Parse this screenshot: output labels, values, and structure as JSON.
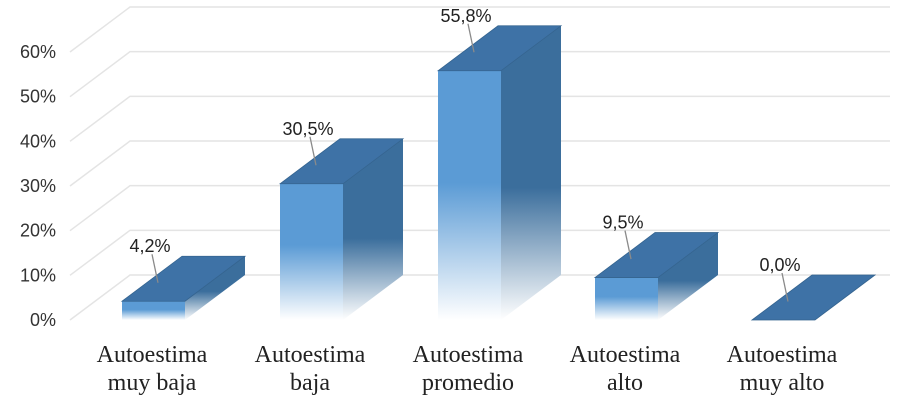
{
  "chart_data": {
    "type": "bar",
    "title": "",
    "xlabel": "",
    "ylabel": "",
    "ylim": [
      0,
      60
    ],
    "y_tick_step": 10,
    "y_tick_suffix": "%",
    "grid": true,
    "three_d": true,
    "legend": "none",
    "categories": [
      [
        "Autoestima",
        "muy baja"
      ],
      [
        "Autoestima",
        "baja"
      ],
      [
        "Autoestima",
        "promedio"
      ],
      [
        "Autoestima",
        "alto"
      ],
      [
        "Autoestima",
        "muy alto"
      ]
    ],
    "values": [
      4.2,
      30.5,
      55.8,
      9.5,
      0.0
    ],
    "data_labels": [
      "4,2%",
      "30,5%",
      "55,8%",
      "9,5%",
      "0,0%"
    ],
    "colors": {
      "front": "#5b9bd5",
      "side": "#3b6e9c",
      "top": "#3e72a6",
      "grid": "#e4e4e4"
    }
  }
}
